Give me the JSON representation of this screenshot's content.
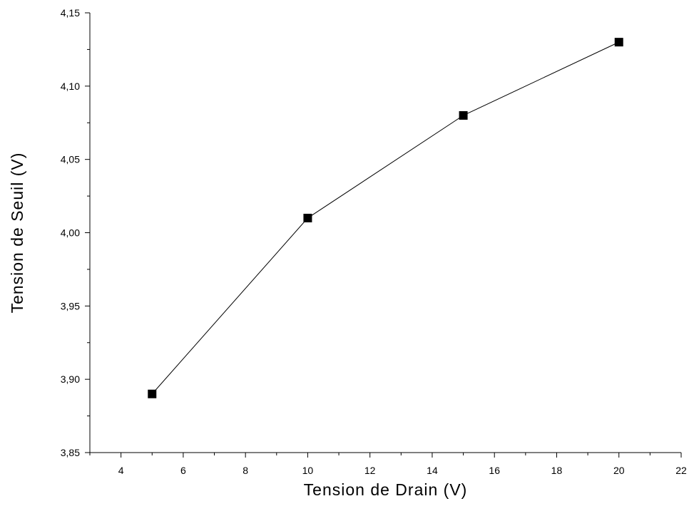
{
  "chart_data": {
    "type": "line",
    "title": "",
    "xlabel": "Tension de Drain (V)",
    "ylabel": "Tension de Seuil (V)",
    "xlim": [
      3,
      22
    ],
    "ylim": [
      3.85,
      4.15
    ],
    "x_ticks": [
      4,
      6,
      8,
      10,
      12,
      14,
      16,
      18,
      20,
      22
    ],
    "x_tick_labels": [
      "4",
      "6",
      "8",
      "10",
      "12",
      "14",
      "16",
      "18",
      "20",
      "22"
    ],
    "y_ticks": [
      3.85,
      3.9,
      3.95,
      4.0,
      4.05,
      4.1,
      4.15
    ],
    "y_tick_labels": [
      "3,85",
      "3,90",
      "3,95",
      "4,00",
      "4,05",
      "4,10",
      "4,15"
    ],
    "grid": false,
    "legend": "none",
    "marker": "square",
    "colors": {
      "line": "#000000",
      "marker": "#000000",
      "axis": "#000000"
    },
    "series": [
      {
        "x": [
          5,
          10,
          15,
          20
        ],
        "y": [
          3.89,
          4.01,
          4.08,
          4.13
        ]
      }
    ]
  }
}
